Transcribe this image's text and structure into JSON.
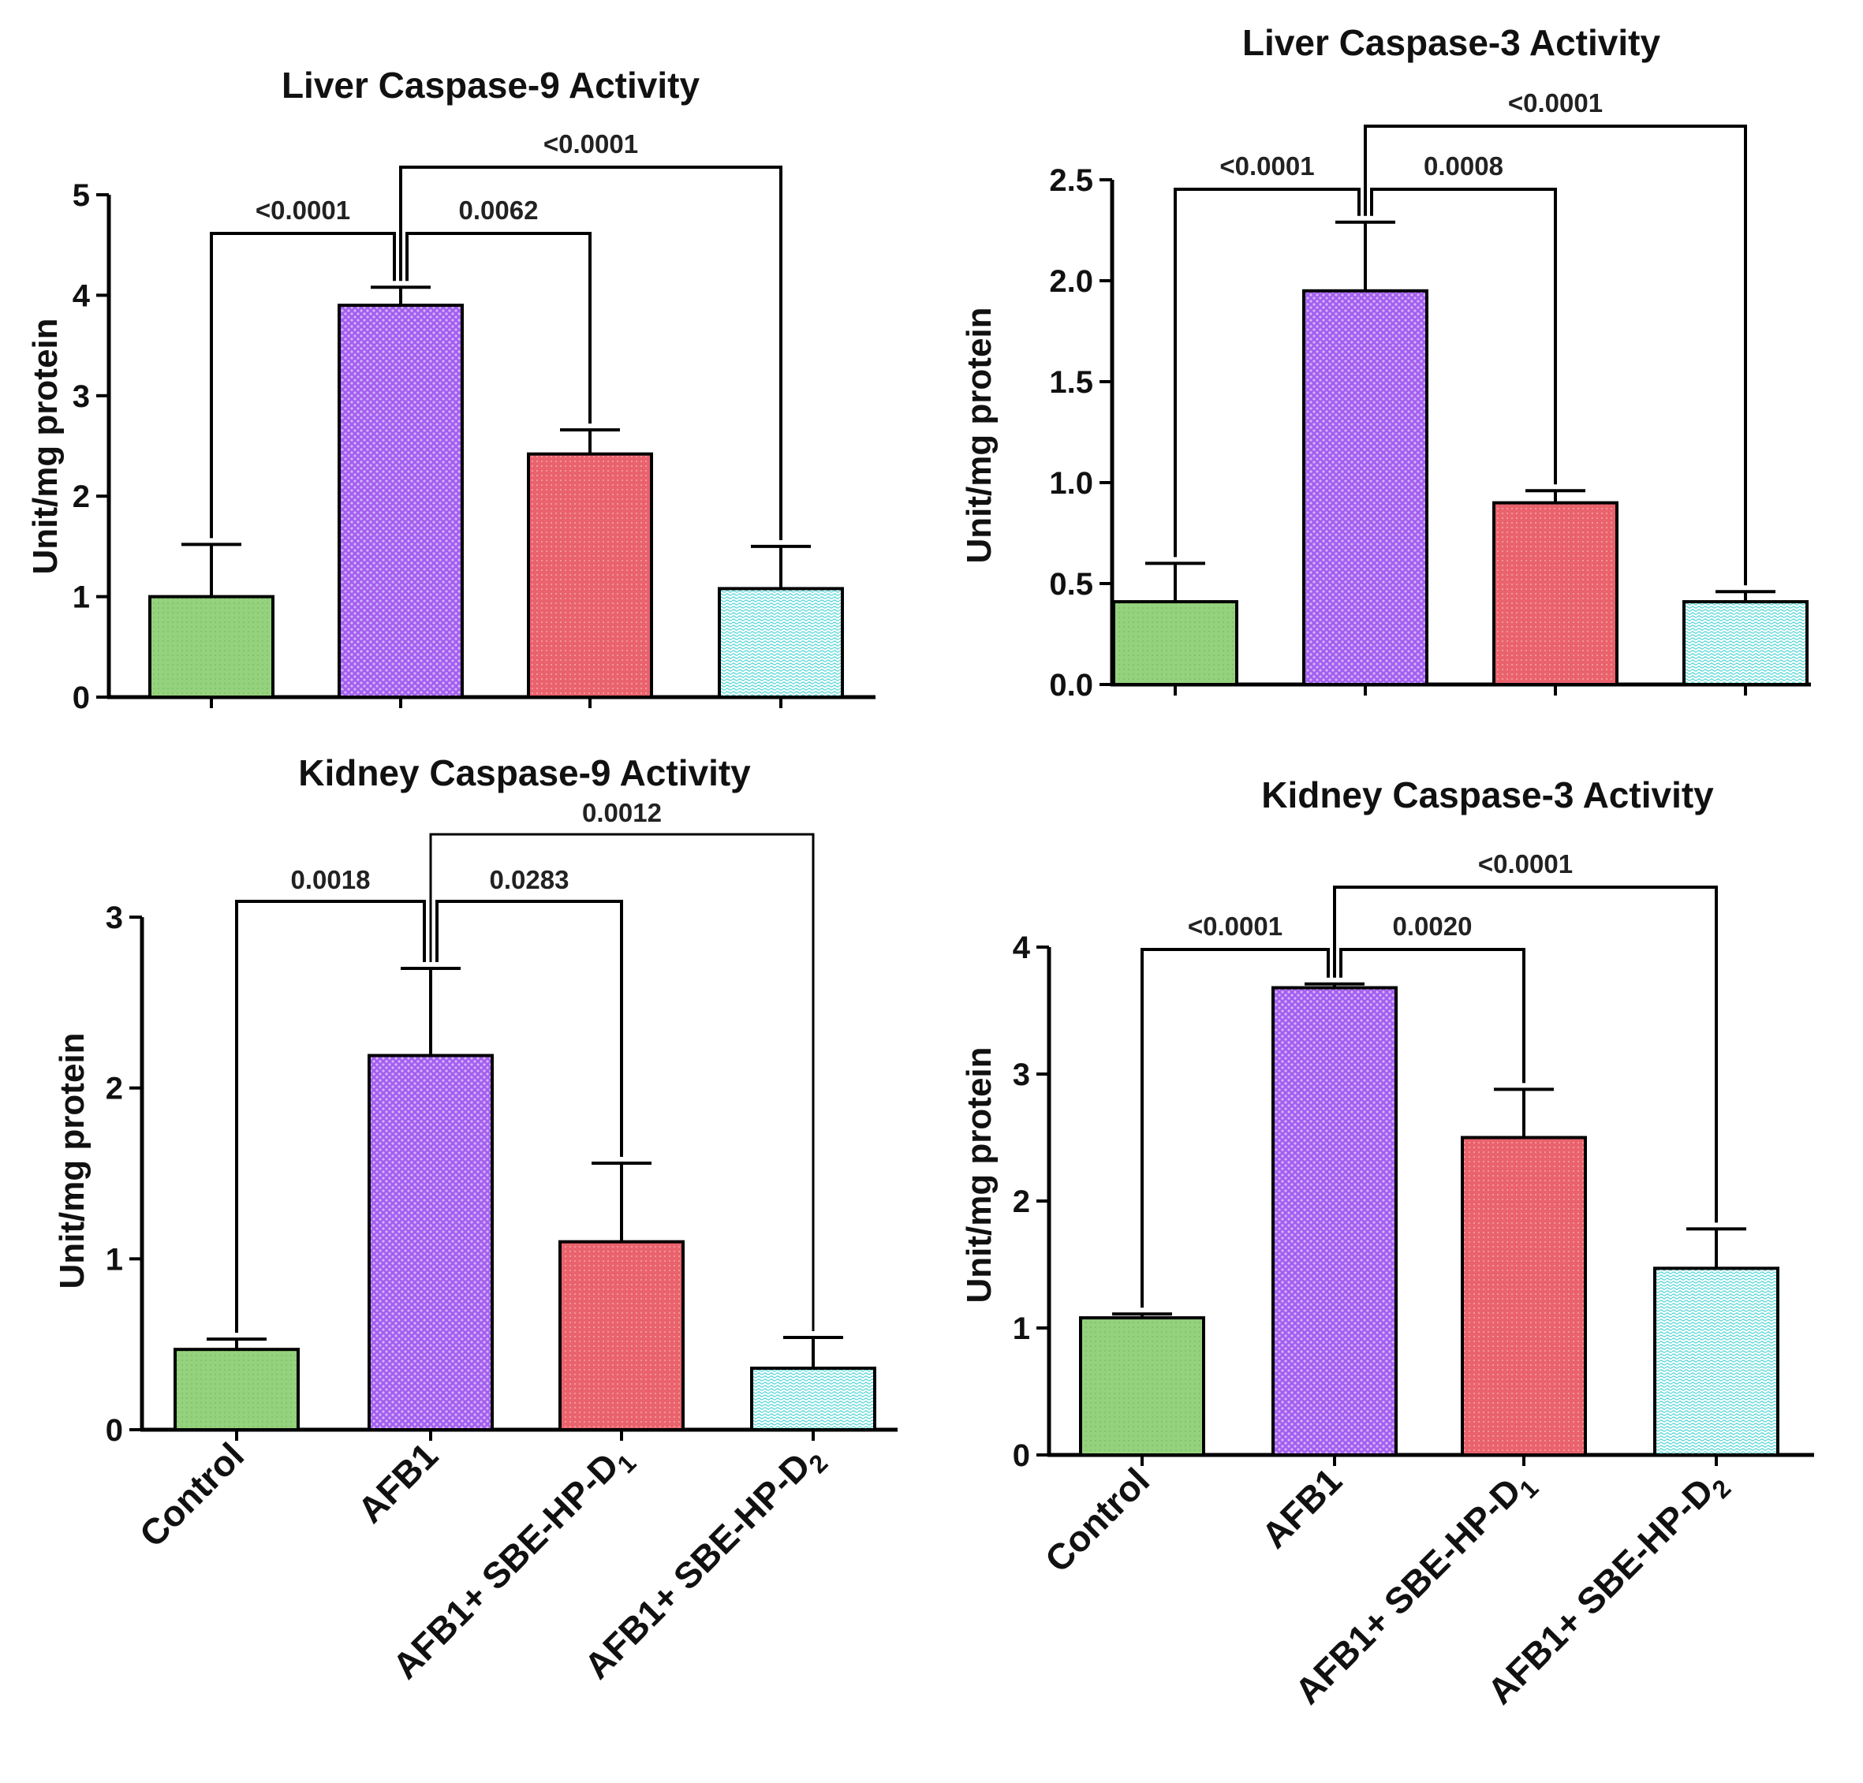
{
  "colors": {
    "control": "#92d07a",
    "afb1": "#9b52e6",
    "d1": "#e9616b",
    "d2": "#bff3f3",
    "axis": "#000000"
  },
  "categories": [
    {
      "main": "Control",
      "sub": ""
    },
    {
      "main": "AFB1",
      "sub": ""
    },
    {
      "main": "AFB1+ SBE-HP-D",
      "sub": "1"
    },
    {
      "main": "AFB1+ SBE-HP-D",
      "sub": "2"
    }
  ],
  "chart_data": [
    {
      "type": "bar",
      "title": "Liver Caspase-9 Activity",
      "ylabel": "Unit/mg protein",
      "ylim": [
        0,
        5
      ],
      "yticks": [
        "0",
        "1",
        "2",
        "3",
        "4",
        "5"
      ],
      "categories": [
        "Control",
        "AFB1",
        "AFB1+ SBE-HP-D1",
        "AFB1+ SBE-HP-D2"
      ],
      "values": [
        1.0,
        3.9,
        2.42,
        1.08
      ],
      "errors": [
        0.52,
        0.18,
        0.24,
        0.42
      ],
      "comparisons": [
        {
          "from": 1,
          "to": 0,
          "label": "<0.0001"
        },
        {
          "from": 1,
          "to": 2,
          "label": "0.0062"
        },
        {
          "from": 1,
          "to": 3,
          "label": "<0.0001"
        }
      ]
    },
    {
      "type": "bar",
      "title": "Liver Caspase-3 Activity",
      "ylabel": "Unit/mg protein",
      "ylim": [
        0,
        2.5
      ],
      "yticks": [
        "0.0",
        "0.5",
        "1.0",
        "1.5",
        "2.0",
        "2.5"
      ],
      "categories": [
        "Control",
        "AFB1",
        "AFB1+ SBE-HP-D1",
        "AFB1+ SBE-HP-D2"
      ],
      "values": [
        0.41,
        1.95,
        0.9,
        0.41
      ],
      "errors": [
        0.19,
        0.34,
        0.06,
        0.05
      ],
      "comparisons": [
        {
          "from": 1,
          "to": 0,
          "label": "<0.0001"
        },
        {
          "from": 1,
          "to": 2,
          "label": "0.0008"
        },
        {
          "from": 1,
          "to": 3,
          "label": "<0.0001"
        }
      ]
    },
    {
      "type": "bar",
      "title": "Kidney Caspase-9 Activity",
      "ylabel": "Unit/mg protein",
      "ylim": [
        0,
        3
      ],
      "yticks": [
        "0",
        "1",
        "2",
        "3"
      ],
      "categories": [
        "Control",
        "AFB1",
        "AFB1+ SBE-HP-D1",
        "AFB1+ SBE-HP-D2"
      ],
      "values": [
        0.47,
        2.19,
        1.1,
        0.36
      ],
      "errors": [
        0.06,
        0.51,
        0.46,
        0.18
      ],
      "comparisons": [
        {
          "from": 1,
          "to": 0,
          "label": "0.0018"
        },
        {
          "from": 1,
          "to": 2,
          "label": "0.0283"
        },
        {
          "from": 1,
          "to": 3,
          "label": "0.0012"
        }
      ]
    },
    {
      "type": "bar",
      "title": "Kidney Caspase-3 Activity",
      "ylabel": "Unit/mg protein",
      "ylim": [
        0,
        4
      ],
      "yticks": [
        "0",
        "1",
        "2",
        "3",
        "4"
      ],
      "categories": [
        "Control",
        "AFB1",
        "AFB1+ SBE-HP-D1",
        "AFB1+ SBE-HP-D2"
      ],
      "values": [
        1.08,
        3.68,
        2.5,
        1.47
      ],
      "errors": [
        0.03,
        0.03,
        0.38,
        0.31
      ],
      "comparisons": [
        {
          "from": 1,
          "to": 0,
          "label": "<0.0001"
        },
        {
          "from": 1,
          "to": 2,
          "label": "0.0020"
        },
        {
          "from": 1,
          "to": 3,
          "label": "<0.0001"
        }
      ]
    }
  ]
}
